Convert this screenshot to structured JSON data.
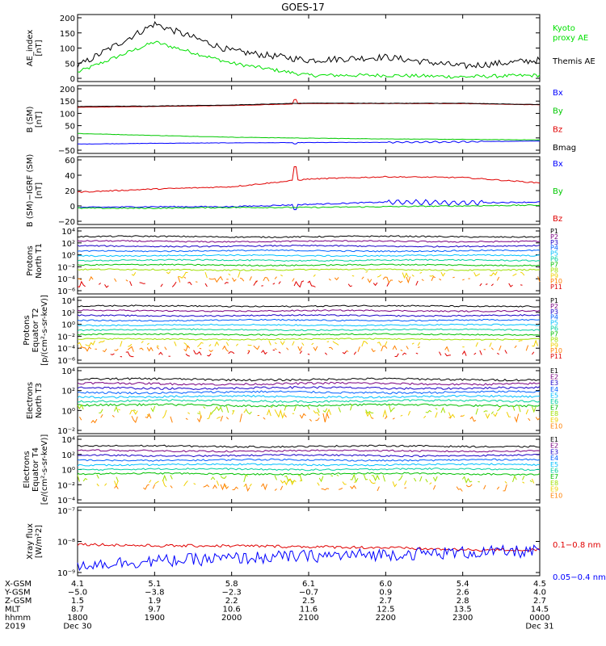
{
  "title": "GOES-17",
  "panels": [
    {
      "ylabel": [
        "AE_index",
        "[nT]"
      ],
      "ytick_labels": [
        "200",
        "150",
        "100",
        "50",
        "0"
      ],
      "legend": [
        {
          "text": "Kyoto",
          "color": "#00e000"
        },
        {
          "text": "proxy AE",
          "color": "#00e000"
        },
        {
          "text": "Themis AE",
          "color": "#000000"
        }
      ]
    },
    {
      "ylabel": [
        "B (SM)",
        "[nT]"
      ],
      "ytick_labels": [
        "200",
        "150",
        "100",
        "50",
        "0",
        "−50"
      ],
      "legend": [
        {
          "text": "Bx",
          "color": "#0000ff"
        },
        {
          "text": "By",
          "color": "#00c800"
        },
        {
          "text": "Bz",
          "color": "#e00000"
        },
        {
          "text": "Bmag",
          "color": "#000000"
        }
      ]
    },
    {
      "ylabel": [
        "B (SM)−IGRF (SM)",
        "[nT]"
      ],
      "ytick_labels": [
        "60",
        "40",
        "20",
        "0",
        "−20"
      ],
      "legend": [
        {
          "text": "Bx",
          "color": "#0000ff"
        },
        {
          "text": "By",
          "color": "#00c800"
        },
        {
          "text": "Bz",
          "color": "#e00000"
        }
      ]
    },
    {
      "ylabel": [
        "Protons",
        "North T1"
      ],
      "ytick_labels": [
        "10⁴",
        "10²",
        "10⁰",
        "10⁻²",
        "10⁻⁴",
        "10⁻⁶"
      ],
      "channels": [
        "P1",
        "P2",
        "P3",
        "P4",
        "P5",
        "P6",
        "P7",
        "P8",
        "P9",
        "P10",
        "P11"
      ]
    },
    {
      "ylabel": [
        "Protons",
        "Equator T2",
        "[p/(cm²-s-sr-keV)]"
      ],
      "ytick_labels": [
        "10⁴",
        "10²",
        "10⁰",
        "10⁻²",
        "10⁻⁴",
        "10⁻⁶"
      ],
      "channels": [
        "P1",
        "P2",
        "P3",
        "P4",
        "P5",
        "P6",
        "P7",
        "P8",
        "P9",
        "P10",
        "P11"
      ]
    },
    {
      "ylabel": [
        "Electrons",
        "North T3"
      ],
      "ytick_labels": [
        "10⁴",
        "10²",
        "10⁰",
        "10⁻²"
      ],
      "channels": [
        "E1",
        "E2",
        "E3",
        "E4",
        "E5",
        "E6",
        "E7",
        "E8",
        "E9",
        "E10"
      ]
    },
    {
      "ylabel": [
        "Electrons",
        "Equator T4",
        "[e/(cm²-s-sr-keV)]"
      ],
      "ytick_labels": [
        "10⁴",
        "10²",
        "10⁰",
        "10⁻²",
        "10⁻⁴"
      ],
      "channels": [
        "E1",
        "E2",
        "E3",
        "E4",
        "E5",
        "E6",
        "E7",
        "E8",
        "E9",
        "E10"
      ]
    },
    {
      "ylabel": [
        "Xray flux",
        "[W/m²2]"
      ],
      "ytick_labels": [
        "10⁻⁷",
        "10⁻⁸",
        "10⁻⁹"
      ],
      "legend": [
        {
          "text": "0.1−0.8 nm",
          "color": "#e00000"
        },
        {
          "text": "0.05−0.4 nm",
          "color": "#0000ff"
        }
      ]
    }
  ],
  "channel_colors": [
    "#000000",
    "#7a0080",
    "#1a00c8",
    "#0060ff",
    "#00c0ff",
    "#00d0a0",
    "#00c000",
    "#a0e000",
    "#f0d000",
    "#ff8000",
    "#e00000"
  ],
  "ephemeris": {
    "row_labels": [
      "X-GSM",
      "Y-GSM",
      "Z-GSM",
      "MLT",
      "hhmm",
      "2019"
    ],
    "columns": [
      [
        "4.1",
        "−5.0",
        "1.5",
        "8.7",
        "1800",
        "Dec 30"
      ],
      [
        "5.1",
        "−3.8",
        "1.9",
        "9.7",
        "1900",
        ""
      ],
      [
        "5.8",
        "−2.3",
        "2.2",
        "10.6",
        "2000",
        ""
      ],
      [
        "6.1",
        "−0.7",
        "2.5",
        "11.6",
        "2100",
        ""
      ],
      [
        "6.0",
        "0.9",
        "2.7",
        "12.5",
        "2200",
        ""
      ],
      [
        "5.4",
        "2.6",
        "2.8",
        "13.5",
        "2300",
        ""
      ],
      [
        "4.5",
        "4.0",
        "2.7",
        "14.5",
        "0000",
        "Dec 31"
      ]
    ]
  },
  "chart_data": [
    {
      "type": "line",
      "title": "GOES-17",
      "ylabel": "AE_index [nT]",
      "xlabel": "hhmm",
      "x": [
        "1800",
        "1900",
        "2000",
        "2100",
        "2200",
        "2300",
        "0000"
      ],
      "ylim": [
        0,
        200
      ],
      "series": [
        {
          "name": "Kyoto proxy AE",
          "values": [
            20,
            120,
            50,
            10,
            10,
            5,
            10
          ]
        },
        {
          "name": "Themis AE",
          "values": [
            40,
            180,
            90,
            60,
            70,
            40,
            60
          ]
        }
      ]
    },
    {
      "type": "line",
      "ylabel": "B (SM) [nT]",
      "x": [
        "1800",
        "1900",
        "2000",
        "2100",
        "2200",
        "2300",
        "0000"
      ],
      "ylim": [
        -50,
        200
      ],
      "series": [
        {
          "name": "Bx",
          "values": [
            -25,
            -22,
            -20,
            -19,
            -18,
            -16,
            -12
          ]
        },
        {
          "name": "By",
          "values": [
            18,
            10,
            3,
            -1,
            -4,
            -6,
            -8
          ]
        },
        {
          "name": "Bz",
          "values": [
            125,
            128,
            132,
            140,
            140,
            140,
            135
          ]
        },
        {
          "name": "Bmag",
          "values": [
            128,
            130,
            134,
            142,
            141,
            141,
            136
          ]
        }
      ]
    },
    {
      "type": "line",
      "ylabel": "B (SM)−IGRF (SM) [nT]",
      "x": [
        "1800",
        "1900",
        "2000",
        "2100",
        "2200",
        "2300",
        "0000"
      ],
      "ylim": [
        -20,
        60
      ],
      "series": [
        {
          "name": "Bx",
          "values": [
            -2,
            -1,
            -1,
            2,
            5,
            4,
            5
          ]
        },
        {
          "name": "By",
          "values": [
            -3,
            -3,
            -2,
            -2,
            -1,
            0,
            1
          ]
        },
        {
          "name": "Bz",
          "values": [
            18,
            22,
            25,
            35,
            38,
            37,
            30
          ]
        }
      ]
    },
    {
      "type": "line",
      "ylabel": "Protons North T1",
      "x": [
        "1800",
        "1900",
        "2000",
        "2100",
        "2200",
        "2300",
        "0000"
      ],
      "log_scale": true,
      "series": [
        {
          "name": "P1",
          "values": [
            500,
            500,
            500,
            500,
            500,
            500,
            500
          ]
        },
        {
          "name": "P3",
          "values": [
            20,
            20,
            20,
            20,
            20,
            20,
            20
          ]
        },
        {
          "name": "P6",
          "values": [
            0.1,
            0.1,
            0.1,
            0.1,
            0.1,
            0.1,
            0.1
          ]
        },
        {
          "name": "P8",
          "values": [
            0.003,
            0.003,
            0.003,
            0.003,
            0.003,
            0.003,
            0.003
          ]
        }
      ]
    },
    {
      "type": "line",
      "ylabel": "Protons Equator T2 [p/(cm²-s-sr-keV)]",
      "x": [
        "1800",
        "1900",
        "2000",
        "2100",
        "2200",
        "2300",
        "0000"
      ],
      "log_scale": true,
      "series": [
        {
          "name": "P1",
          "values": [
            2000,
            2000,
            2000,
            2000,
            2000,
            2000,
            2000
          ]
        },
        {
          "name": "P3",
          "values": [
            50,
            50,
            50,
            50,
            50,
            50,
            50
          ]
        },
        {
          "name": "P6",
          "values": [
            0.5,
            0.5,
            0.5,
            0.5,
            0.5,
            0.5,
            0.5
          ]
        },
        {
          "name": "P8",
          "values": [
            0.01,
            0.01,
            0.01,
            0.01,
            0.01,
            0.01,
            0.01
          ]
        }
      ]
    },
    {
      "type": "line",
      "ylabel": "Electrons North T3",
      "x": [
        "1800",
        "1900",
        "2000",
        "2100",
        "2200",
        "2300",
        "0000"
      ],
      "log_scale": true,
      "series": [
        {
          "name": "E1",
          "values": [
            2000,
            2000,
            2000,
            2000,
            2000,
            2000,
            2000
          ]
        },
        {
          "name": "E3",
          "values": [
            200,
            200,
            200,
            200,
            200,
            200,
            200
          ]
        },
        {
          "name": "E6",
          "values": [
            10,
            10,
            10,
            10,
            10,
            10,
            10
          ]
        },
        {
          "name": "E9",
          "values": [
            0.05,
            0.05,
            0.05,
            0.05,
            0.05,
            0.05,
            0.05
          ]
        }
      ]
    },
    {
      "type": "line",
      "ylabel": "Electrons Equator T4 [e/(cm²-s-sr-keV)]",
      "x": [
        "1800",
        "1900",
        "2000",
        "2100",
        "2200",
        "2300",
        "0000"
      ],
      "log_scale": true,
      "series": [
        {
          "name": "E1",
          "values": [
            3000,
            3000,
            3000,
            3000,
            3000,
            3000,
            3000
          ]
        },
        {
          "name": "E3",
          "values": [
            300,
            300,
            300,
            300,
            300,
            300,
            300
          ]
        },
        {
          "name": "E6",
          "values": [
            10,
            10,
            10,
            10,
            10,
            10,
            10
          ]
        },
        {
          "name": "E9",
          "values": [
            0.05,
            0.05,
            0.05,
            0.05,
            0.05,
            0.05,
            0.05
          ]
        }
      ]
    },
    {
      "type": "line",
      "ylabel": "Xray flux [W/m²2]",
      "x": [
        "1800",
        "1900",
        "2000",
        "2100",
        "2200",
        "2300",
        "0000"
      ],
      "log_scale": true,
      "series": [
        {
          "name": "0.1−0.8 nm",
          "values": [
            8e-09,
            7e-09,
            7e-09,
            6.5e-09,
            6e-09,
            5e-09,
            5e-09
          ]
        },
        {
          "name": "0.05−0.4 nm",
          "values": [
            1.5e-09,
            2e-09,
            2.5e-09,
            3e-09,
            3.5e-09,
            4e-09,
            4.5e-09
          ]
        }
      ]
    }
  ]
}
